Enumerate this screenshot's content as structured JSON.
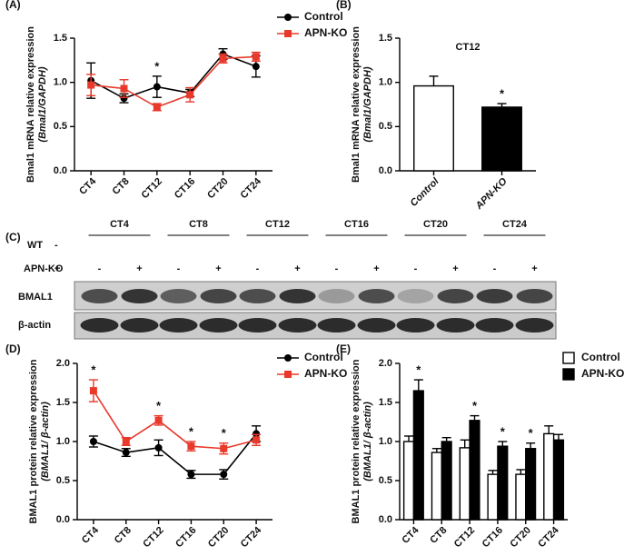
{
  "chart_data": [
    {
      "type": "line",
      "panel_label": "(A)",
      "y_label": "Bmal1 mRNA relative expression",
      "y_label_2": "(Bmal1/GAPDH)",
      "categories": [
        "CT4",
        "CT8",
        "CT12",
        "CT16",
        "CT20",
        "CT24"
      ],
      "series": [
        {
          "name": "Control",
          "color": "#000000",
          "marker": "circle",
          "values": [
            1.02,
            0.82,
            0.95,
            0.88,
            1.32,
            1.18
          ],
          "errors": [
            0.2,
            0.05,
            0.12,
            0.04,
            0.06,
            0.12
          ]
        },
        {
          "name": "APN-KO",
          "color": "#e8392b",
          "marker": "square",
          "values": [
            0.97,
            0.93,
            0.72,
            0.86,
            1.27,
            1.29
          ],
          "errors": [
            0.12,
            0.1,
            0.04,
            0.08,
            0.05,
            0.05
          ],
          "significance": [
            null,
            null,
            "*",
            null,
            null,
            null
          ]
        }
      ],
      "ylim": [
        0,
        1.5
      ],
      "yticks": [
        {
          "value": 0,
          "label": "0.0"
        },
        {
          "value": 0.5,
          "label": "0.5"
        },
        {
          "value": 1,
          "label": "1.0"
        },
        {
          "value": 1.5,
          "label": "1.5"
        }
      ],
      "legend": "upper right"
    },
    {
      "type": "bar",
      "panel_label": "(B)",
      "title": "CT12",
      "y_label": "Bmal1 mRNA relative expression",
      "y_label_2": "(Bmal1/GAPDH)",
      "categories": [
        "Control",
        "APN-KO"
      ],
      "values": [
        0.96,
        0.72
      ],
      "errors": [
        0.11,
        0.04
      ],
      "colors": [
        "#ffffff",
        "#000000"
      ],
      "significance": [
        null,
        "*"
      ],
      "ylim": [
        0,
        1.5
      ],
      "yticks": [
        {
          "value": 0,
          "label": "0.0"
        },
        {
          "value": 0.5,
          "label": "0.5"
        },
        {
          "value": 1,
          "label": "1.0"
        },
        {
          "value": 1.5,
          "label": "1.5"
        }
      ]
    },
    {
      "type": "line",
      "panel_label": "(D)",
      "y_label": "BMAL1 protein relative expression",
      "y_label_2": "(BMAL1/ β-actin)",
      "categories": [
        "CT4",
        "CT8",
        "CT12",
        "CT16",
        "CT20",
        "CT24"
      ],
      "series": [
        {
          "name": "Control",
          "color": "#000000",
          "marker": "circle",
          "values": [
            1.0,
            0.86,
            0.92,
            0.58,
            0.58,
            1.1
          ],
          "errors": [
            0.07,
            0.05,
            0.1,
            0.05,
            0.06,
            0.1
          ]
        },
        {
          "name": "APN-KO",
          "color": "#e8392b",
          "marker": "square",
          "values": [
            1.65,
            1.0,
            1.27,
            0.94,
            0.91,
            1.02
          ],
          "errors": [
            0.14,
            0.05,
            0.06,
            0.06,
            0.07,
            0.07
          ],
          "significance": [
            "*",
            null,
            "*",
            "*",
            "*",
            null
          ]
        }
      ],
      "ylim": [
        0,
        2
      ],
      "yticks": [
        {
          "value": 0,
          "label": "0.0"
        },
        {
          "value": 0.5,
          "label": "0.5"
        },
        {
          "value": 1,
          "label": "1.0"
        },
        {
          "value": 1.5,
          "label": "1.5"
        },
        {
          "value": 2,
          "label": "2.0"
        }
      ],
      "legend": "upper right"
    },
    {
      "type": "grouped_bar",
      "panel_label": "(E)",
      "y_label": "BMAL1 protein relative expression",
      "y_label_2": "(BMAL1/ β-actin)",
      "categories": [
        "CT4",
        "CT8",
        "CT12",
        "CT16",
        "CT20",
        "CT24"
      ],
      "series": [
        {
          "name": "Control",
          "color": "#ffffff",
          "values": [
            1.0,
            0.86,
            0.92,
            0.58,
            0.58,
            1.1
          ],
          "errors": [
            0.07,
            0.05,
            0.1,
            0.05,
            0.06,
            0.1
          ]
        },
        {
          "name": "APN-KO",
          "color": "#000000",
          "values": [
            1.65,
            1.0,
            1.27,
            0.94,
            0.91,
            1.02
          ],
          "errors": [
            0.14,
            0.05,
            0.06,
            0.06,
            0.07,
            0.07
          ],
          "significance": [
            "*",
            null,
            "*",
            "*",
            "*",
            null
          ]
        }
      ],
      "ylim": [
        0,
        2
      ],
      "yticks": [
        {
          "value": 0,
          "label": "0.0"
        },
        {
          "value": 0.5,
          "label": "0.5"
        },
        {
          "value": 1,
          "label": "1.0"
        },
        {
          "value": 1.5,
          "label": "1.5"
        },
        {
          "value": 2,
          "label": "2.0"
        }
      ],
      "legend": "outside right"
    }
  ],
  "blot": {
    "panel_label": "(C)",
    "conditions": [
      {
        "label": "WT",
        "sign": "-"
      },
      {
        "label": "APN-KO",
        "sign": "+"
      }
    ],
    "groups": [
      "CT4",
      "CT8",
      "CT12",
      "CT16",
      "CT20",
      "CT24"
    ],
    "lane_signs": [
      "-",
      "+"
    ],
    "bands": [
      "BMAL1",
      "β-actin"
    ]
  }
}
